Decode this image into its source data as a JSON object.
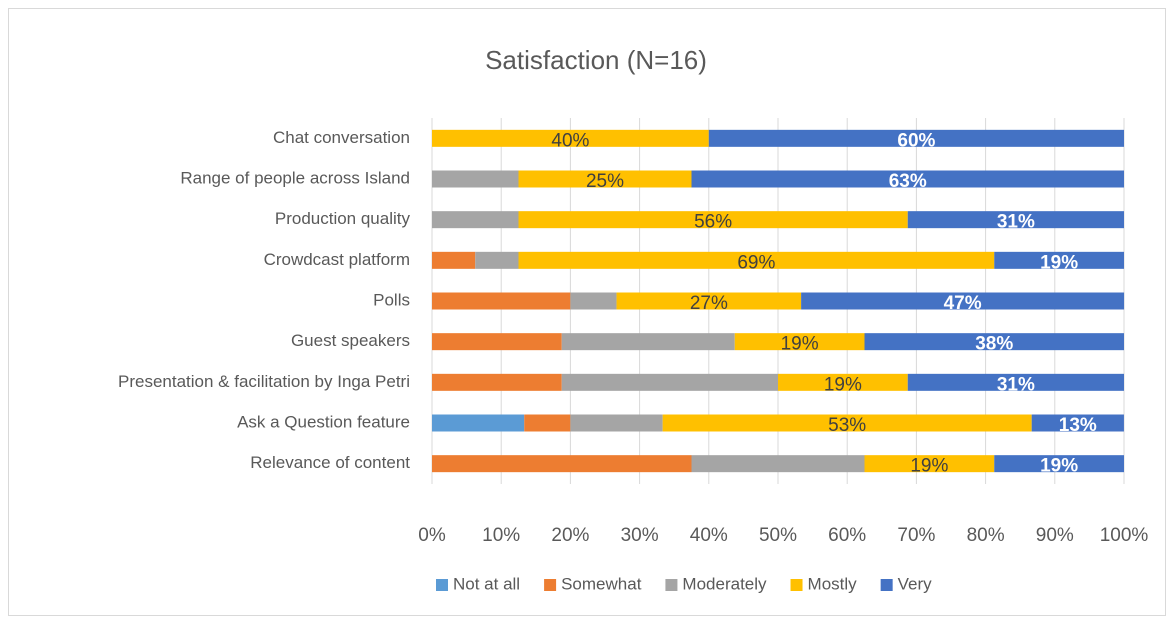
{
  "chart_data": {
    "type": "bar",
    "orientation": "horizontal",
    "stacked": true,
    "title": "Satisfaction (N=16)",
    "categories": [
      "Chat conversation",
      "Range of people across  Island",
      "Production quality",
      "Crowdcast platform",
      "Polls",
      "Guest speakers",
      "Presentation & facilitation by Inga Petri",
      "Ask a Question feature",
      "Relevance of  content"
    ],
    "series": [
      {
        "name": "Not at all",
        "color": "#5b9bd5",
        "values": [
          0,
          0,
          0,
          0,
          0,
          0,
          0,
          13.33,
          0
        ]
      },
      {
        "name": "Somewhat",
        "color": "#ed7d31",
        "values": [
          0,
          0,
          0,
          6.25,
          20,
          18.75,
          18.75,
          6.67,
          37.5
        ]
      },
      {
        "name": "Moderately",
        "color": "#a5a5a5",
        "values": [
          0,
          12.5,
          12.5,
          6.25,
          6.67,
          25,
          31.25,
          13.33,
          25
        ]
      },
      {
        "name": "Mostly",
        "color": "#ffc000",
        "values": [
          40,
          25,
          56.25,
          68.75,
          26.67,
          18.75,
          18.75,
          53.33,
          18.75
        ],
        "value_labels": [
          "40%",
          "25%",
          "56%",
          "69%",
          "27%",
          "19%",
          "19%",
          "53%",
          "19%"
        ]
      },
      {
        "name": "Very",
        "color": "#4472c4",
        "values": [
          60,
          62.5,
          31.25,
          18.75,
          46.67,
          37.5,
          31.25,
          13.33,
          18.75
        ],
        "value_labels": [
          "60%",
          "63%",
          "31%",
          "19%",
          "47%",
          "38%",
          "31%",
          "13%",
          "19%"
        ]
      }
    ],
    "xlim": [
      0,
      100
    ],
    "xticks": [
      {
        "value": 0,
        "label": "0%"
      },
      {
        "value": 10,
        "label": "10%"
      },
      {
        "value": 20,
        "label": "20%"
      },
      {
        "value": 30,
        "label": "30%"
      },
      {
        "value": 40,
        "label": "40%"
      },
      {
        "value": 50,
        "label": "50%"
      },
      {
        "value": 60,
        "label": "60%"
      },
      {
        "value": 70,
        "label": "70%"
      },
      {
        "value": 80,
        "label": "80%"
      },
      {
        "value": 90,
        "label": "90%"
      },
      {
        "value": 100,
        "label": "100%"
      }
    ],
    "grid": true,
    "legend": "bottom"
  }
}
